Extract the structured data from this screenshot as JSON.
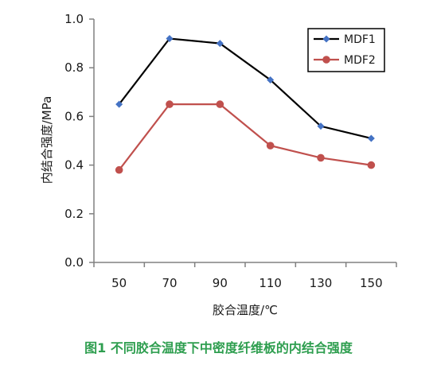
{
  "chart_data": {
    "type": "line",
    "categories": [
      "50",
      "70",
      "90",
      "110",
      "130",
      "150"
    ],
    "series": [
      {
        "name": "MDF1",
        "values": [
          0.65,
          0.92,
          0.9,
          0.75,
          0.56,
          0.51
        ],
        "color": "#000000",
        "marker_color": "#4472c4",
        "marker": "diamond"
      },
      {
        "name": "MDF2",
        "values": [
          0.38,
          0.65,
          0.65,
          0.48,
          0.43,
          0.4
        ],
        "color": "#c0504d",
        "marker_color": "#c0504d",
        "marker": "circle"
      }
    ],
    "xlabel": "胶合温度/℃",
    "ylabel": "内结合强度/MPa",
    "ylim": [
      0,
      1
    ],
    "yticks": [
      "0.0",
      "0.2",
      "0.4",
      "0.6",
      "0.8",
      "1.0"
    ],
    "grid": false,
    "legend_position": "top-right"
  },
  "caption": "图1 不同胶合温度下中密度纤维板的内结合强度"
}
